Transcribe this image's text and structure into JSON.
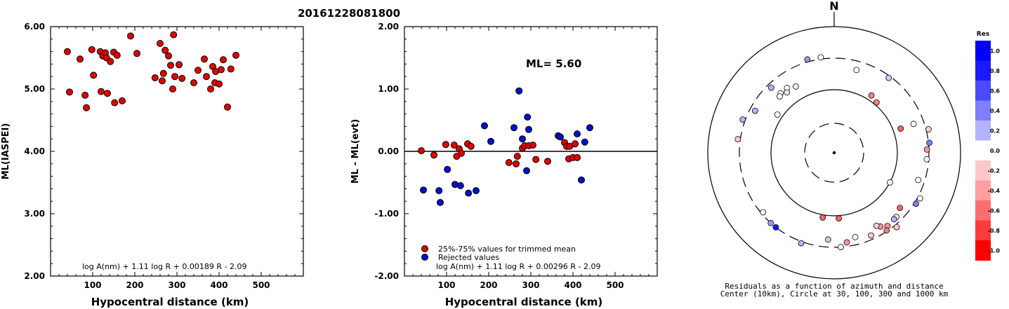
{
  "title": "20161228081800",
  "chart_data": [
    {
      "type": "scatter",
      "xlabel": "Hypocentral distance (km)",
      "ylabel": "ML(IASPEI)",
      "xlim": [
        0,
        600
      ],
      "ylim": [
        2.0,
        6.0
      ],
      "xticks": [
        "100",
        "200",
        "300",
        "400",
        "500"
      ],
      "yticks": [
        "2.00",
        "3.00",
        "4.00",
        "5.00",
        "6.00"
      ],
      "formula": "log A(nm) + 1.11 log R + 0.00189 R - 2.09",
      "colors": {
        "point": "#e00000"
      },
      "points": [
        [
          40,
          5.6
        ],
        [
          45,
          4.95
        ],
        [
          70,
          5.48
        ],
        [
          82,
          4.9
        ],
        [
          85,
          4.7
        ],
        [
          98,
          5.63
        ],
        [
          102,
          5.22
        ],
        [
          118,
          5.6
        ],
        [
          120,
          4.96
        ],
        [
          124,
          5.53
        ],
        [
          130,
          5.58
        ],
        [
          133,
          5.5
        ],
        [
          135,
          4.93
        ],
        [
          142,
          5.44
        ],
        [
          150,
          5.59
        ],
        [
          152,
          4.78
        ],
        [
          158,
          5.54
        ],
        [
          170,
          4.81
        ],
        [
          190,
          5.85
        ],
        [
          205,
          5.57
        ],
        [
          248,
          5.18
        ],
        [
          260,
          5.73
        ],
        [
          265,
          5.13
        ],
        [
          268,
          5.25
        ],
        [
          272,
          5.62
        ],
        [
          280,
          5.53
        ],
        [
          285,
          5.38
        ],
        [
          290,
          5.0
        ],
        [
          292,
          5.87
        ],
        [
          295,
          5.2
        ],
        [
          305,
          5.39
        ],
        [
          312,
          5.17
        ],
        [
          340,
          5.1
        ],
        [
          350,
          5.3
        ],
        [
          365,
          5.48
        ],
        [
          370,
          5.2
        ],
        [
          380,
          5.0
        ],
        [
          385,
          5.36
        ],
        [
          390,
          5.1
        ],
        [
          392,
          5.28
        ],
        [
          400,
          5.08
        ],
        [
          405,
          5.31
        ],
        [
          410,
          5.47
        ],
        [
          420,
          4.71
        ],
        [
          428,
          5.32
        ],
        [
          440,
          5.54
        ]
      ]
    },
    {
      "type": "scatter",
      "xlabel": "Hypocentral distance (km)",
      "ylabel": "ML - ML(evt)",
      "xlim": [
        0,
        600
      ],
      "ylim": [
        -2.0,
        2.0
      ],
      "xticks": [
        "100",
        "200",
        "300",
        "400",
        "500"
      ],
      "yticks": [
        "-2.00",
        "-1.00",
        "0.00",
        "1.00",
        "2.00"
      ],
      "annotation": "ML= 5.60",
      "formula": "log A(nm) + 1.11 log R + 0.00296 R - 2.09",
      "legend": [
        "25%-75% values for trimmed mean",
        "Rejected values"
      ],
      "colors": {
        "used": "#e00000",
        "rejected": "#0010c8"
      },
      "series": [
        {
          "name": "25%-75% values for trimmed mean",
          "points": [
            [
              40,
              0.01
            ],
            [
              70,
              -0.06
            ],
            [
              98,
              0.11
            ],
            [
              118,
              0.1
            ],
            [
              124,
              -0.08
            ],
            [
              130,
              0.04
            ],
            [
              135,
              -0.03
            ],
            [
              150,
              0.12
            ],
            [
              158,
              0.08
            ],
            [
              248,
              -0.18
            ],
            [
              265,
              -0.2
            ],
            [
              268,
              -0.08
            ],
            [
              280,
              0.05
            ],
            [
              285,
              0.09
            ],
            [
              295,
              0.09
            ],
            [
              305,
              0.1
            ],
            [
              312,
              -0.13
            ],
            [
              340,
              -0.16
            ],
            [
              380,
              0.14
            ],
            [
              385,
              0.08
            ],
            [
              390,
              -0.12
            ],
            [
              392,
              0.08
            ],
            [
              400,
              -0.1
            ],
            [
              405,
              0.12
            ],
            [
              410,
              -0.1
            ]
          ]
        },
        {
          "name": "Rejected values",
          "points": [
            [
              45,
              -0.62
            ],
            [
              82,
              -0.63
            ],
            [
              85,
              -0.82
            ],
            [
              102,
              -0.29
            ],
            [
              120,
              -0.53
            ],
            [
              133,
              -0.55
            ],
            [
              152,
              -0.67
            ],
            [
              170,
              -0.63
            ],
            [
              190,
              0.41
            ],
            [
              205,
              0.16
            ],
            [
              260,
              0.38
            ],
            [
              272,
              0.97
            ],
            [
              280,
              0.2
            ],
            [
              290,
              -0.31
            ],
            [
              292,
              0.55
            ],
            [
              295,
              0.35
            ],
            [
              365,
              0.25
            ],
            [
              370,
              0.23
            ],
            [
              410,
              0.28
            ],
            [
              420,
              -0.46
            ],
            [
              428,
              0.15
            ],
            [
              440,
              0.38
            ]
          ]
        }
      ]
    },
    {
      "type": "scatter",
      "subtype": "polar",
      "north_label": "N",
      "caption_line1": "Residuals as a function of azimuth and distance",
      "caption_line2": "Center (10km), Circle at 30, 100, 300 and 1000 km",
      "colorbar": {
        "title": "Res",
        "labels": [
          "1.0",
          "0.8",
          "0.6",
          "0.4",
          "0.2",
          "0.0",
          "-0.2",
          "-0.4",
          "-0.6",
          "-0.8",
          "-1.0"
        ],
        "colors": [
          "#0000ff",
          "#1a1aff",
          "#4a4aff",
          "#7f7fff",
          "#b3b3ff",
          "#ffffff",
          "#ffc8c8",
          "#ff9e9e",
          "#ff6e6e",
          "#ff3a3a",
          "#ff0000"
        ]
      },
      "stations": [
        {
          "az": -16,
          "dist": 330,
          "res": 0.4
        },
        {
          "az": -8,
          "dist": 320,
          "res": 0.0
        },
        {
          "az": -30,
          "dist": 160,
          "res": -0.1
        },
        {
          "az": -36,
          "dist": 180,
          "res": 0.0
        },
        {
          "az": -38,
          "dist": 160,
          "res": 0.1
        },
        {
          "az": -42,
          "dist": 180,
          "res": 0.0
        },
        {
          "az": -44,
          "dist": 170,
          "res": 0.0
        },
        {
          "az": -44,
          "dist": 260,
          "res": 0.3
        },
        {
          "az": -62,
          "dist": 250,
          "res": 0.3
        },
        {
          "az": -56,
          "dist": 120,
          "res": 0.0
        },
        {
          "az": -70,
          "dist": 330,
          "res": 0.3
        },
        {
          "az": -82,
          "dist": 330,
          "res": -0.2
        },
        {
          "az": 15,
          "dist": 220,
          "res": 0.0
        },
        {
          "az": 33,
          "dist": 120,
          "res": -0.5
        },
        {
          "az": 40,
          "dist": 110,
          "res": -0.5
        },
        {
          "az": 36,
          "dist": 280,
          "res": 0.2
        },
        {
          "az": 70,
          "dist": 210,
          "res": 0.0
        },
        {
          "az": 76,
          "dist": 330,
          "res": -0.2
        },
        {
          "az": 84,
          "dist": 310,
          "res": 0.5
        },
        {
          "az": 88,
          "dist": 280,
          "res": -0.4
        },
        {
          "az": 94,
          "dist": 280,
          "res": 0.0
        },
        {
          "az": 70,
          "dist": 130,
          "res": -0.6
        },
        {
          "az": 118,
          "dist": 100,
          "res": 0.0
        },
        {
          "az": 108,
          "dist": 240,
          "res": 0.0
        },
        {
          "az": 122,
          "dist": 320,
          "res": 0.5
        },
        {
          "az": 118,
          "dist": 330,
          "res": 0.0
        },
        {
          "az": 130,
          "dist": 220,
          "res": -0.6
        },
        {
          "az": 136,
          "dist": 250,
          "res": -0.1
        },
        {
          "az": 138,
          "dist": 250,
          "res": 0.3
        },
        {
          "az": 140,
          "dist": 330,
          "res": -0.2
        },
        {
          "az": 144,
          "dist": 260,
          "res": -0.4
        },
        {
          "az": 146,
          "dist": 290,
          "res": -0.5
        },
        {
          "az": 148,
          "dist": 230,
          "res": -0.4
        },
        {
          "az": 150,
          "dist": 210,
          "res": -0.2
        },
        {
          "az": 156,
          "dist": 260,
          "res": -0.2
        },
        {
          "az": 166,
          "dist": 230,
          "res": 0.0
        },
        {
          "az": 172,
          "dist": 260,
          "res": -0.4
        },
        {
          "az": 176,
          "dist": 300,
          "res": 0.0
        },
        {
          "az": 184,
          "dist": 230,
          "res": 0.2
        },
        {
          "az": 200,
          "dist": 320,
          "res": 0.3
        },
        {
          "az": 176,
          "dist": 110,
          "res": -0.6
        },
        {
          "az": 190,
          "dist": 110,
          "res": -0.6
        },
        {
          "az": 218,
          "dist": 300,
          "res": 0.9
        },
        {
          "az": 222,
          "dist": 300,
          "res": 0.4
        },
        {
          "az": 230,
          "dist": 280,
          "res": 0.0
        }
      ]
    }
  ]
}
